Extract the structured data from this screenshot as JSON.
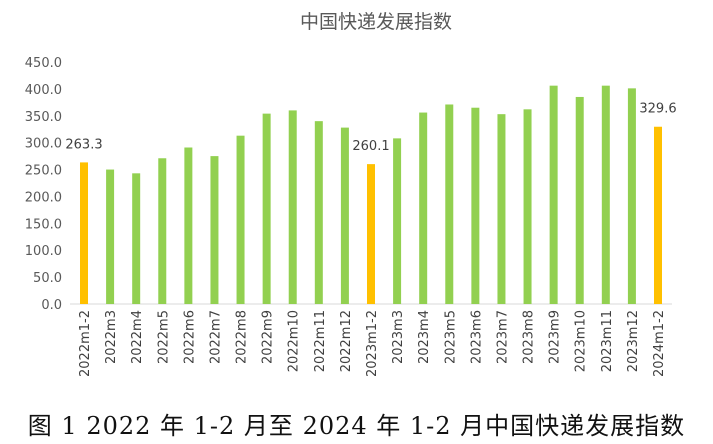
{
  "chart_data": {
    "type": "bar",
    "title": "中国快递发展指数",
    "categories": [
      "2022m1-2",
      "2022m3",
      "2022m4",
      "2022m5",
      "2022m6",
      "2022m7",
      "2022m8",
      "2022m9",
      "2022m10",
      "2022m11",
      "2022m12",
      "2023m1-2",
      "2023m3",
      "2023m4",
      "2023m5",
      "2023m6",
      "2023m7",
      "2023m8",
      "2023m9",
      "2023m10",
      "2023m11",
      "2023m12",
      "2024m1-2"
    ],
    "values": [
      263.3,
      250,
      243,
      271,
      291,
      275,
      313,
      354,
      360,
      340,
      328,
      260.1,
      308,
      356,
      371,
      365,
      353,
      362,
      406,
      385,
      406,
      401,
      329.6
    ],
    "data_labels": {
      "0": "263.3",
      "11": "260.1",
      "22": "329.6"
    },
    "highlight_indices": [
      0,
      11,
      22
    ],
    "colors": {
      "normal": "#92d050",
      "highlight": "#ffc000"
    },
    "ylim": [
      0,
      450
    ],
    "yticks": [
      "0.0",
      "50.0",
      "100.0",
      "150.0",
      "200.0",
      "250.0",
      "300.0",
      "350.0",
      "400.0",
      "450.0"
    ],
    "grid": false,
    "xlabel": "",
    "ylabel": ""
  },
  "caption": "图 1 2022 年 1-2 月至 2024 年 1-2 月中国快递发展指数"
}
